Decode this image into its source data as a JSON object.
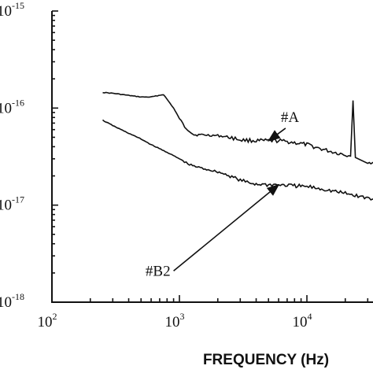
{
  "chart_data": {
    "type": "line",
    "title": "",
    "xlabel": "FREQUENCY (Hz)",
    "ylabel": "",
    "xscale": "log",
    "yscale": "log",
    "xlim": [
      100,
      100000
    ],
    "ylim": [
      1e-18,
      1e-15
    ],
    "x_ticks": [
      {
        "value": 100,
        "base": "10",
        "exp": "2"
      },
      {
        "value": 1000,
        "base": "10",
        "exp": "3"
      },
      {
        "value": 10000,
        "base": "10",
        "exp": "4"
      }
    ],
    "y_ticks": [
      {
        "value": 1e-15,
        "base": "10",
        "exp": "-15"
      },
      {
        "value": 1e-16,
        "base": "10",
        "exp": "-16"
      },
      {
        "value": 1e-17,
        "base": "10",
        "exp": "-17"
      },
      {
        "value": 1e-18,
        "base": "10",
        "exp": "-18"
      }
    ],
    "grid": false,
    "legend": "none",
    "series": [
      {
        "x": [
          250,
          300,
          400,
          500,
          600,
          750,
          900,
          1000,
          1100,
          1300,
          1500,
          2000,
          2500,
          3000,
          4000,
          5000,
          6000,
          7000,
          8000,
          10000,
          12000,
          15000,
          20000,
          22000,
          23000,
          24000,
          30000,
          40000,
          50000
        ],
        "y": [
          1.45e-16,
          1.42e-16,
          1.35e-16,
          1.3e-16,
          1.3e-16,
          1.38e-16,
          1e-16,
          7.8e-17,
          6.4e-17,
          5.3e-17,
          5.3e-17,
          5.2e-17,
          5e-17,
          4.7e-17,
          4.6e-17,
          4.6e-17,
          4.6e-17,
          4.5e-17,
          4.4e-17,
          4.2e-17,
          3.9e-17,
          3.6e-17,
          3.3e-17,
          3.2e-17,
          1.2e-16,
          3.1e-17,
          2.8e-17,
          2.5e-17,
          2.3e-17
        ]
      },
      {
        "x": [
          250,
          300,
          400,
          500,
          600,
          800,
          1000,
          1200,
          1500,
          2000,
          2500,
          3000,
          3500,
          4000,
          5000,
          6000,
          7000,
          8000,
          10000,
          12000,
          15000,
          20000,
          30000,
          40000,
          50000
        ],
        "y": [
          7.5e-17,
          6.6e-17,
          5.5e-17,
          4.8e-17,
          4.2e-17,
          3.5e-17,
          3e-17,
          2.6e-17,
          2.4e-17,
          2.2e-17,
          2e-17,
          1.8e-17,
          1.7e-17,
          1.65e-17,
          1.62e-17,
          1.62e-17,
          1.6e-17,
          1.58e-17,
          1.55e-17,
          1.5e-17,
          1.42e-17,
          1.32e-17,
          1.18e-17,
          1.05e-17,
          9.6e-18
        ]
      }
    ],
    "annotations": [
      {
        "text": "#A",
        "arrow_from": [
          6800,
          6.2e-17
        ],
        "arrow_to": [
          5000,
          4.6e-17
        ]
      },
      {
        "text": "#B2",
        "arrow_from": [
          900,
          2.1e-18
        ],
        "arrow_to": [
          6000,
          1.62e-17
        ]
      }
    ]
  }
}
